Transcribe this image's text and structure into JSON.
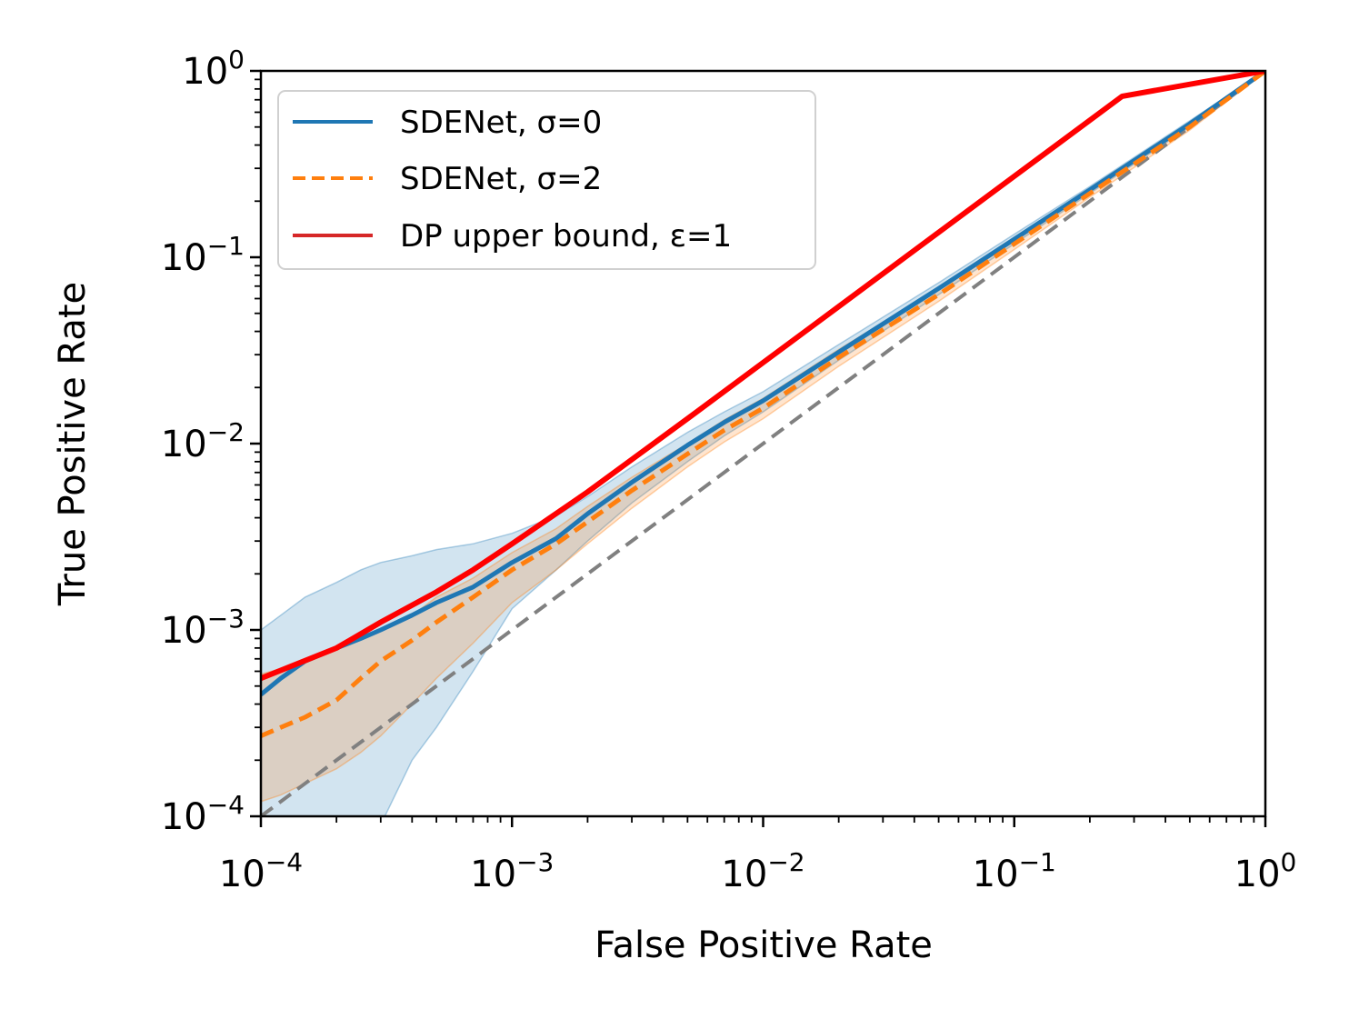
{
  "chart_data": {
    "type": "line",
    "title": "",
    "xlabel": "False Positive Rate",
    "ylabel": "True Positive Rate",
    "xscale": "log",
    "yscale": "log",
    "xlim": [
      0.0001,
      1
    ],
    "ylim": [
      0.0001,
      1
    ],
    "x_ticks": [
      {
        "base": "10",
        "exp": "−4"
      },
      {
        "base": "10",
        "exp": "−3"
      },
      {
        "base": "10",
        "exp": "−2"
      },
      {
        "base": "10",
        "exp": "−1"
      },
      {
        "base": "10",
        "exp": "0"
      }
    ],
    "y_ticks": [
      {
        "base": "10",
        "exp": "−4"
      },
      {
        "base": "10",
        "exp": "−3"
      },
      {
        "base": "10",
        "exp": "−2"
      },
      {
        "base": "10",
        "exp": "−1"
      },
      {
        "base": "10",
        "exp": "0"
      }
    ],
    "grid": false,
    "legend_position": "upper-left",
    "series": [
      {
        "name": "SDENet, σ=0",
        "color": "#1f77b4",
        "style": "solid",
        "x": [
          0.0001,
          0.00012,
          0.00015,
          0.0002,
          0.00025,
          0.0003,
          0.0004,
          0.0005,
          0.0007,
          0.001,
          0.0015,
          0.002,
          0.003,
          0.005,
          0.007,
          0.01,
          0.02,
          0.05,
          0.1,
          0.2,
          0.5,
          1
        ],
        "y": [
          0.00045,
          0.00055,
          0.00068,
          0.0008,
          0.0009,
          0.001,
          0.0012,
          0.0014,
          0.0017,
          0.0023,
          0.0031,
          0.0042,
          0.0062,
          0.0098,
          0.013,
          0.017,
          0.031,
          0.068,
          0.125,
          0.23,
          0.52,
          1
        ],
        "band_lower": [
          2e-05,
          2e-05,
          2e-05,
          2e-05,
          2e-05,
          9e-05,
          0.0002,
          0.0003,
          0.0006,
          0.0013,
          0.0021,
          0.003,
          0.0048,
          0.008,
          0.011,
          0.0148,
          0.028,
          0.063,
          0.118,
          0.22,
          0.5,
          1
        ],
        "band_upper": [
          0.001,
          0.0012,
          0.0015,
          0.0018,
          0.0021,
          0.0023,
          0.0025,
          0.0027,
          0.0029,
          0.0033,
          0.0041,
          0.0052,
          0.0075,
          0.0115,
          0.0148,
          0.019,
          0.034,
          0.073,
          0.133,
          0.24,
          0.54,
          1
        ]
      },
      {
        "name": "SDENet, σ=2",
        "color": "#ff7f0e",
        "style": "dashed",
        "x": [
          0.0001,
          0.00012,
          0.00015,
          0.0002,
          0.00025,
          0.0003,
          0.0004,
          0.0005,
          0.0007,
          0.001,
          0.0015,
          0.002,
          0.003,
          0.005,
          0.007,
          0.01,
          0.02,
          0.05,
          0.1,
          0.2,
          0.5,
          1
        ],
        "y": [
          0.00027,
          0.0003,
          0.00034,
          0.00042,
          0.00055,
          0.00068,
          0.00088,
          0.0011,
          0.0015,
          0.0021,
          0.0029,
          0.0038,
          0.0056,
          0.0088,
          0.0118,
          0.0155,
          0.029,
          0.063,
          0.118,
          0.22,
          0.5,
          1
        ],
        "band_lower": [
          0.00012,
          0.00013,
          0.00015,
          0.00018,
          0.00022,
          0.00027,
          0.0004,
          0.00055,
          0.00085,
          0.0014,
          0.0021,
          0.0029,
          0.0045,
          0.0075,
          0.0102,
          0.0136,
          0.026,
          0.058,
          0.11,
          0.21,
          0.48,
          1
        ],
        "band_upper": [
          0.00058,
          0.00062,
          0.00068,
          0.00078,
          0.0009,
          0.001,
          0.0012,
          0.0015,
          0.0019,
          0.0026,
          0.0035,
          0.0046,
          0.0066,
          0.01,
          0.0134,
          0.0175,
          0.032,
          0.068,
          0.126,
          0.23,
          0.52,
          1
        ]
      },
      {
        "name": "DP upper bound, ε=1",
        "color": "#ff0000",
        "style": "solid",
        "x": [
          0.0001,
          0.0002,
          0.0003,
          0.0005,
          0.0007,
          0.001,
          0.002,
          0.005,
          0.01,
          0.02,
          0.05,
          0.1,
          0.269,
          1
        ],
        "y": [
          0.00055,
          0.0008,
          0.0011,
          0.0016,
          0.0021,
          0.0029,
          0.0055,
          0.0136,
          0.0272,
          0.0544,
          0.136,
          0.272,
          0.731,
          1
        ]
      },
      {
        "name": "",
        "color": "#808080",
        "style": "dashed",
        "x": [
          0.0001,
          1
        ],
        "y": [
          0.0001,
          1
        ]
      }
    ]
  }
}
